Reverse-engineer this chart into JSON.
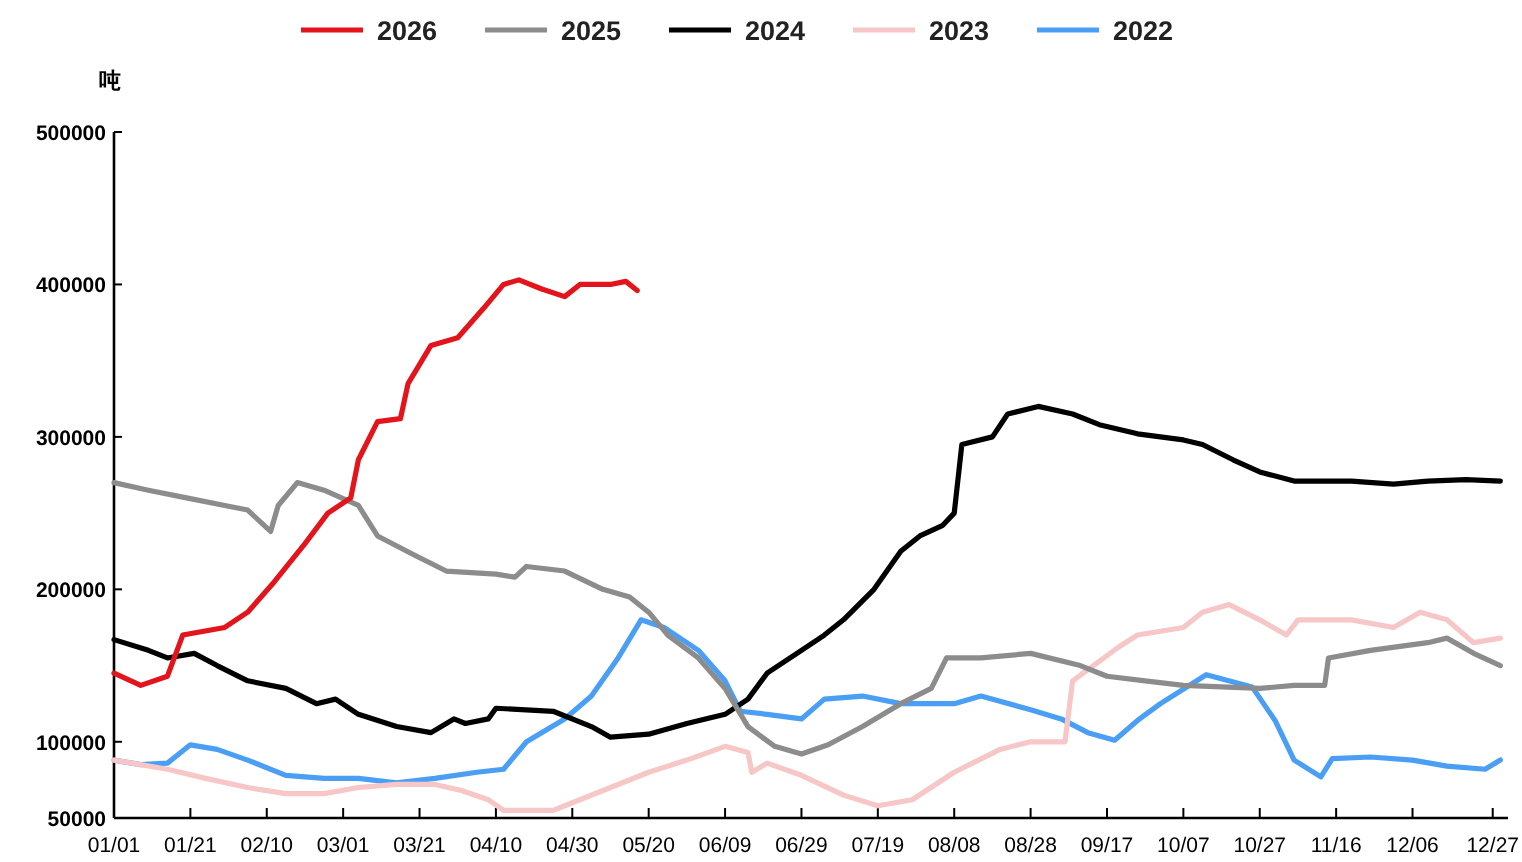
{
  "chart_data": {
    "type": "line",
    "ylabel": "吨",
    "legend": "top",
    "grid": false,
    "line_style": "solid",
    "marker": "none",
    "xlim": [
      "--01-01",
      "--12-31"
    ],
    "xticks": [
      {
        "value": "--01-01",
        "label": "01/01"
      },
      {
        "value": "--01-21",
        "label": "01/21"
      },
      {
        "value": "--02-10",
        "label": "02/10"
      },
      {
        "value": "--03-01",
        "label": "03/01"
      },
      {
        "value": "--03-21",
        "label": "03/21"
      },
      {
        "value": "--04-10",
        "label": "04/10"
      },
      {
        "value": "--04-30",
        "label": "04/30"
      },
      {
        "value": "--05-20",
        "label": "05/20"
      },
      {
        "value": "--06-09",
        "label": "06/09"
      },
      {
        "value": "--06-29",
        "label": "06/29"
      },
      {
        "value": "--07-19",
        "label": "07/19"
      },
      {
        "value": "--08-08",
        "label": "08/08"
      },
      {
        "value": "--08-28",
        "label": "08/28"
      },
      {
        "value": "--09-17",
        "label": "09/17"
      },
      {
        "value": "--10-07",
        "label": "10/07"
      },
      {
        "value": "--10-27",
        "label": "10/27"
      },
      {
        "value": "--11-16",
        "label": "11/16"
      },
      {
        "value": "--12-06",
        "label": "12/06"
      },
      {
        "value": "--12-27",
        "label": "12/27"
      }
    ],
    "ylim": [
      50000,
      500000
    ],
    "yticks": [
      50000,
      100000,
      200000,
      300000,
      400000,
      500000
    ],
    "series": [
      {
        "name": "2026",
        "color": "#e3141b",
        "x": [
          "--01-01",
          "--01-08",
          "--01-15",
          "--01-19",
          "--01-30",
          "--02-05",
          "--02-12",
          "--02-20",
          "--02-26",
          "--03-03",
          "--03-05",
          "--03-10",
          "--03-16",
          "--03-18",
          "--03-24",
          "--03-31",
          "--04-07",
          "--04-12",
          "--04-16",
          "--04-22",
          "--04-28",
          "--05-02",
          "--05-10",
          "--05-14",
          "--05-17"
        ],
        "values": [
          145000,
          137000,
          143000,
          170000,
          175000,
          185000,
          205000,
          230000,
          250000,
          260000,
          285000,
          310000,
          312000,
          335000,
          360000,
          365000,
          385000,
          400000,
          403000,
          397000,
          392000,
          400000,
          400000,
          402000,
          396000
        ]
      },
      {
        "name": "2025",
        "color": "#8c8c8c",
        "x": [
          "--01-01",
          "--01-10",
          "--01-20",
          "--01-30",
          "--02-05",
          "--02-11",
          "--02-13",
          "--02-18",
          "--02-25",
          "--03-05",
          "--03-10",
          "--03-20",
          "--03-28",
          "--04-10",
          "--04-15",
          "--04-18",
          "--04-28",
          "--05-08",
          "--05-15",
          "--05-20",
          "--05-25",
          "--06-02",
          "--06-09",
          "--06-15",
          "--06-22",
          "--06-29",
          "--07-06",
          "--07-15",
          "--07-25",
          "--08-02",
          "--08-06",
          "--08-15",
          "--08-28",
          "--09-10",
          "--09-17",
          "--09-27",
          "--10-07",
          "--10-17",
          "--10-27",
          "--11-05",
          "--11-13",
          "--11-14",
          "--11-25",
          "--12-10",
          "--12-15",
          "--12-22",
          "--12-29"
        ],
        "values": [
          270000,
          265000,
          260000,
          255000,
          252000,
          238000,
          255000,
          270000,
          265000,
          255000,
          235000,
          222000,
          212000,
          210000,
          208000,
          215000,
          212000,
          200000,
          195000,
          185000,
          170000,
          155000,
          135000,
          110000,
          97000,
          92000,
          98000,
          110000,
          125000,
          135000,
          155000,
          155000,
          158000,
          150000,
          143000,
          140000,
          137000,
          136000,
          135000,
          137000,
          137000,
          155000,
          160000,
          165000,
          168000,
          158000,
          150000
        ]
      },
      {
        "name": "2024",
        "color": "#000000",
        "x": [
          "--01-01",
          "--01-10",
          "--01-15",
          "--01-22",
          "--01-28",
          "--02-05",
          "--02-15",
          "--02-23",
          "--02-28",
          "--03-05",
          "--03-15",
          "--03-24",
          "--03-30",
          "--04-02",
          "--04-08",
          "--04-10",
          "--04-25",
          "--05-05",
          "--05-10",
          "--05-20",
          "--05-30",
          "--06-09",
          "--06-15",
          "--06-20",
          "--06-29",
          "--07-05",
          "--07-10",
          "--07-18",
          "--07-25",
          "--07-30",
          "--08-05",
          "--08-08",
          "--08-10",
          "--08-18",
          "--08-22",
          "--08-30",
          "--09-08",
          "--09-15",
          "--09-25",
          "--10-07",
          "--10-12",
          "--10-20",
          "--10-27",
          "--11-05",
          "--11-20",
          "--12-01",
          "--12-10",
          "--12-20",
          "--12-29"
        ],
        "values": [
          167000,
          160000,
          155000,
          158000,
          150000,
          140000,
          135000,
          125000,
          128000,
          118000,
          110000,
          106000,
          115000,
          112000,
          115000,
          122000,
          120000,
          110000,
          103000,
          105000,
          112000,
          118000,
          128000,
          145000,
          160000,
          170000,
          180000,
          200000,
          225000,
          235000,
          242000,
          250000,
          295000,
          300000,
          315000,
          320000,
          315000,
          308000,
          302000,
          298000,
          295000,
          285000,
          277000,
          271000,
          271000,
          269000,
          271000,
          272000,
          271000
        ]
      },
      {
        "name": "2023",
        "color": "#f7c6c7",
        "x": [
          "--01-01",
          "--01-15",
          "--01-25",
          "--02-05",
          "--02-15",
          "--02-25",
          "--03-05",
          "--03-15",
          "--03-25",
          "--04-01",
          "--04-08",
          "--04-12",
          "--04-25",
          "--04-30",
          "--05-10",
          "--05-20",
          "--05-30",
          "--06-09",
          "--06-15",
          "--06-16",
          "--06-20",
          "--06-29",
          "--07-10",
          "--07-19",
          "--07-28",
          "--08-08",
          "--08-20",
          "--08-28",
          "--09-06",
          "--09-08",
          "--09-20",
          "--09-25",
          "--10-07",
          "--10-12",
          "--10-19",
          "--10-27",
          "--11-03",
          "--11-06",
          "--11-20",
          "--12-01",
          "--12-08",
          "--12-15",
          "--12-22",
          "--12-29"
        ],
        "values": [
          88000,
          82000,
          76000,
          70000,
          66000,
          66000,
          70000,
          72000,
          72000,
          68000,
          62000,
          55000,
          55000,
          60000,
          70000,
          80000,
          88000,
          97000,
          93000,
          80000,
          86000,
          78000,
          65000,
          58000,
          62000,
          80000,
          95000,
          100000,
          100000,
          140000,
          162000,
          170000,
          175000,
          185000,
          190000,
          180000,
          170000,
          180000,
          180000,
          175000,
          185000,
          180000,
          165000,
          168000
        ]
      },
      {
        "name": "2022",
        "color": "#4a9ff5",
        "x": [
          "--01-01",
          "--01-08",
          "--01-15",
          "--01-21",
          "--01-28",
          "--02-05",
          "--02-15",
          "--02-25",
          "--03-05",
          "--03-15",
          "--03-25",
          "--04-05",
          "--04-12",
          "--04-18",
          "--04-28",
          "--05-05",
          "--05-12",
          "--05-18",
          "--05-24",
          "--06-02",
          "--06-09",
          "--06-13",
          "--06-20",
          "--06-29",
          "--07-05",
          "--07-15",
          "--07-25",
          "--08-08",
          "--08-15",
          "--08-28",
          "--09-05",
          "--09-12",
          "--09-19",
          "--09-25",
          "--10-01",
          "--10-13",
          "--10-25",
          "--10-31",
          "--11-05",
          "--11-12",
          "--11-15",
          "--11-25",
          "--12-06",
          "--12-15",
          "--12-25",
          "--12-29"
        ],
        "values": [
          88000,
          85000,
          86000,
          98000,
          95000,
          88000,
          78000,
          76000,
          76000,
          73000,
          76000,
          80000,
          82000,
          100000,
          115000,
          130000,
          155000,
          180000,
          175000,
          160000,
          140000,
          120000,
          118000,
          115000,
          128000,
          130000,
          125000,
          125000,
          130000,
          121000,
          115000,
          106000,
          101000,
          114000,
          125000,
          144000,
          136000,
          114000,
          88000,
          77000,
          89000,
          90000,
          88000,
          84000,
          82000,
          88000
        ]
      }
    ]
  }
}
